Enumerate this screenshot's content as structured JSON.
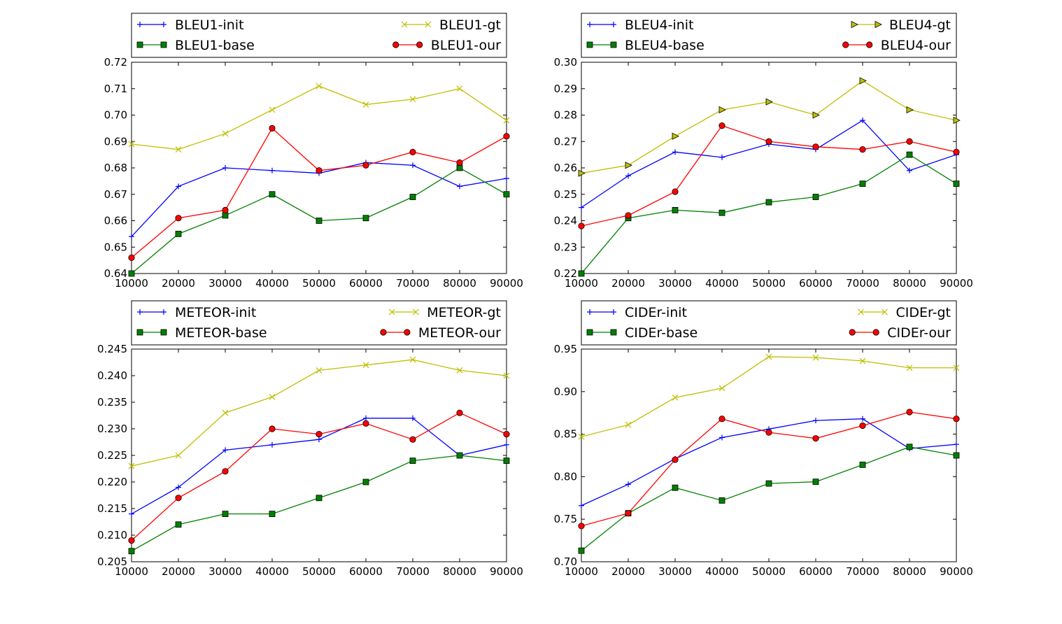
{
  "chart_data": [
    {
      "type": "line",
      "title": "",
      "xlabel": "",
      "ylabel": "",
      "x": [
        10000,
        20000,
        30000,
        40000,
        50000,
        60000,
        70000,
        80000,
        90000
      ],
      "xlim": [
        10000,
        90000
      ],
      "ylim": [
        0.64,
        0.72
      ],
      "yticks": [
        "0.64",
        "0.65",
        "0.66",
        "0.67",
        "0.68",
        "0.69",
        "0.70",
        "0.71",
        "0.72"
      ],
      "grid": false,
      "legend": "top (above plot, two columns)",
      "series": [
        {
          "name": "BLEU1-init",
          "color": "#0000ff",
          "marker": "plus",
          "values": [
            0.654,
            0.673,
            0.68,
            0.679,
            0.678,
            0.682,
            0.681,
            0.673,
            0.676
          ]
        },
        {
          "name": "BLEU1-base",
          "color": "#008000",
          "marker": "square",
          "values": [
            0.64,
            0.655,
            0.662,
            0.67,
            0.66,
            0.661,
            0.669,
            0.68,
            0.67
          ]
        },
        {
          "name": "BLEU1-gt",
          "color": "#bfbf00",
          "marker": "x",
          "values": [
            0.689,
            0.687,
            0.693,
            0.702,
            0.711,
            0.704,
            0.706,
            0.71,
            0.698
          ]
        },
        {
          "name": "BLEU1-our",
          "color": "#ff0000",
          "marker": "circle",
          "values": [
            0.646,
            0.661,
            0.664,
            0.695,
            0.679,
            0.681,
            0.686,
            0.682,
            0.692
          ]
        }
      ]
    },
    {
      "type": "line",
      "title": "",
      "xlabel": "",
      "ylabel": "",
      "x": [
        10000,
        20000,
        30000,
        40000,
        50000,
        60000,
        70000,
        80000,
        90000
      ],
      "xlim": [
        10000,
        90000
      ],
      "ylim": [
        0.22,
        0.3
      ],
      "yticks": [
        "0.22",
        "0.23",
        "0.24",
        "0.25",
        "0.26",
        "0.27",
        "0.28",
        "0.29",
        "0.30"
      ],
      "grid": false,
      "legend": "top (above plot, two columns)",
      "series": [
        {
          "name": "BLEU4-init",
          "color": "#0000ff",
          "marker": "plus",
          "values": [
            0.245,
            0.257,
            0.266,
            0.264,
            0.269,
            0.267,
            0.278,
            0.259,
            0.265
          ]
        },
        {
          "name": "BLEU4-base",
          "color": "#008000",
          "marker": "square",
          "values": [
            0.22,
            0.241,
            0.244,
            0.243,
            0.247,
            0.249,
            0.254,
            0.265,
            0.254
          ]
        },
        {
          "name": "BLEU4-gt",
          "color": "#bfbf00",
          "marker": "triangle-right",
          "values": [
            0.258,
            0.261,
            0.272,
            0.282,
            0.285,
            0.28,
            0.293,
            0.282,
            0.278
          ]
        },
        {
          "name": "BLEU4-our",
          "color": "#ff0000",
          "marker": "circle",
          "values": [
            0.238,
            0.242,
            0.251,
            0.276,
            0.27,
            0.268,
            0.267,
            0.27,
            0.266
          ]
        }
      ]
    },
    {
      "type": "line",
      "title": "",
      "xlabel": "",
      "ylabel": "",
      "x": [
        10000,
        20000,
        30000,
        40000,
        50000,
        60000,
        70000,
        80000,
        90000
      ],
      "xlim": [
        10000,
        90000
      ],
      "ylim": [
        0.205,
        0.245
      ],
      "yticks": [
        "0.205",
        "0.210",
        "0.215",
        "0.220",
        "0.225",
        "0.230",
        "0.235",
        "0.240",
        "0.245"
      ],
      "grid": false,
      "legend": "top (above plot, two columns)",
      "series": [
        {
          "name": "METEOR-init",
          "color": "#0000ff",
          "marker": "plus",
          "values": [
            0.214,
            0.219,
            0.226,
            0.227,
            0.228,
            0.232,
            0.232,
            0.225,
            0.227
          ]
        },
        {
          "name": "METEOR-base",
          "color": "#008000",
          "marker": "square",
          "values": [
            0.207,
            0.212,
            0.214,
            0.214,
            0.217,
            0.22,
            0.224,
            0.225,
            0.224
          ]
        },
        {
          "name": "METEOR-gt",
          "color": "#bfbf00",
          "marker": "x",
          "values": [
            0.223,
            0.225,
            0.233,
            0.236,
            0.241,
            0.242,
            0.243,
            0.241,
            0.24
          ]
        },
        {
          "name": "METEOR-our",
          "color": "#ff0000",
          "marker": "circle",
          "values": [
            0.209,
            0.217,
            0.222,
            0.23,
            0.229,
            0.231,
            0.228,
            0.233,
            0.229
          ]
        }
      ]
    },
    {
      "type": "line",
      "title": "",
      "xlabel": "",
      "ylabel": "",
      "x": [
        10000,
        20000,
        30000,
        40000,
        50000,
        60000,
        70000,
        80000,
        90000
      ],
      "xlim": [
        10000,
        90000
      ],
      "ylim": [
        0.7,
        0.95
      ],
      "yticks": [
        "0.70",
        "0.75",
        "0.80",
        "0.85",
        "0.90",
        "0.95"
      ],
      "grid": false,
      "legend": "top (above plot, two columns)",
      "series": [
        {
          "name": "CIDEr-init",
          "color": "#0000ff",
          "marker": "plus",
          "values": [
            0.766,
            0.791,
            0.821,
            0.846,
            0.856,
            0.866,
            0.868,
            0.833,
            0.838
          ]
        },
        {
          "name": "CIDEr-base",
          "color": "#008000",
          "marker": "square",
          "values": [
            0.713,
            0.757,
            0.787,
            0.772,
            0.792,
            0.794,
            0.814,
            0.835,
            0.825
          ]
        },
        {
          "name": "CIDEr-gt",
          "color": "#bfbf00",
          "marker": "x",
          "values": [
            0.847,
            0.861,
            0.893,
            0.904,
            0.941,
            0.94,
            0.936,
            0.928,
            0.928
          ]
        },
        {
          "name": "CIDEr-our",
          "color": "#ff0000",
          "marker": "circle",
          "values": [
            0.742,
            0.757,
            0.82,
            0.868,
            0.852,
            0.845,
            0.86,
            0.876,
            0.868
          ]
        }
      ]
    }
  ]
}
